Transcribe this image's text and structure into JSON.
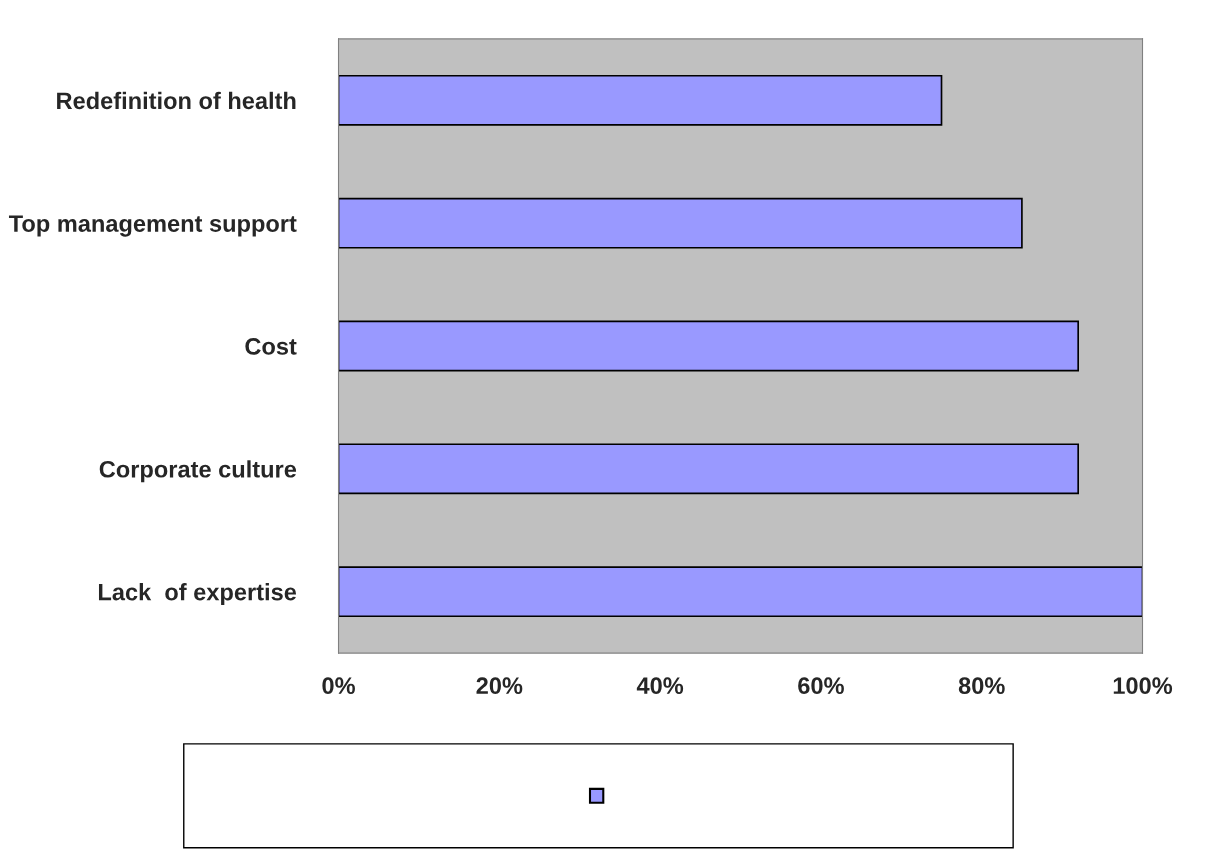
{
  "chart_data": {
    "type": "bar",
    "orientation": "horizontal",
    "categories": [
      "Redefinition of health",
      "Top management support",
      "Cost",
      "Corporate culture",
      "Lack  of expertise"
    ],
    "values": [
      75,
      85,
      92,
      92,
      100
    ],
    "color": "#9999ff",
    "xlim": [
      0,
      100
    ],
    "xticks": [
      {
        "value": 0,
        "label": "0%"
      },
      {
        "value": 20,
        "label": "20%"
      },
      {
        "value": 40,
        "label": "40%"
      },
      {
        "value": 60,
        "label": "60%"
      },
      {
        "value": 80,
        "label": "80%"
      },
      {
        "value": 100,
        "label": "100%"
      }
    ],
    "grid": false
  }
}
